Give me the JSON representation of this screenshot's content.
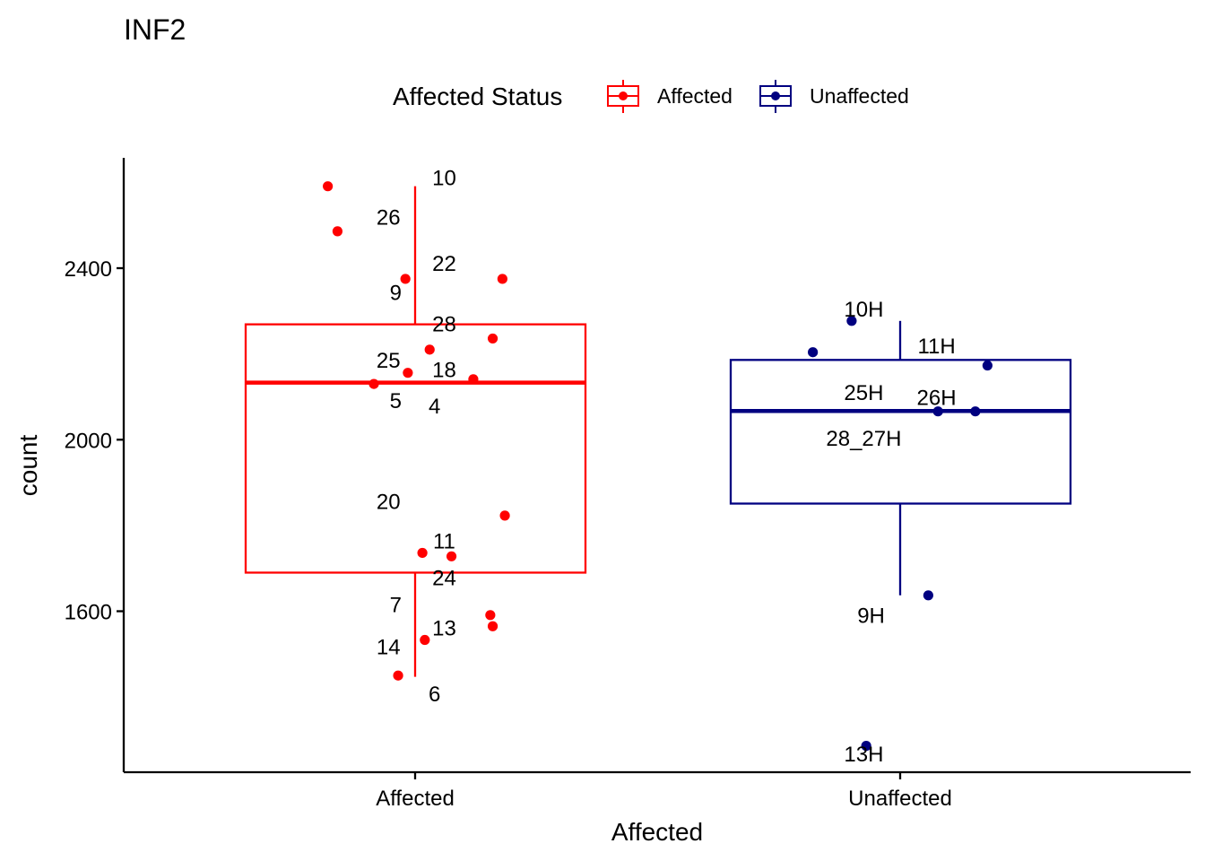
{
  "chart_data": {
    "type": "box",
    "title": "INF2",
    "xlabel": "Affected",
    "ylabel": "count",
    "ylim": [
      1260,
      2640
    ],
    "yticks": [
      1600,
      2000,
      2400
    ],
    "grid": false,
    "categories": [
      "Affected",
      "Unaffected"
    ],
    "legend": {
      "title": "Affected Status",
      "position": "top",
      "entries": [
        {
          "label": "Affected",
          "color": "#ff0000"
        },
        {
          "label": "Unaffected",
          "color": "#000080"
        }
      ]
    },
    "boxes": [
      {
        "category": "Affected",
        "color": "#ff0000",
        "whisker_low": 1447,
        "q1": 1690,
        "median": 2133,
        "q3": 2269,
        "whisker_high": 2591
      },
      {
        "category": "Unaffected",
        "color": "#000080",
        "whisker_low": 1637,
        "q1": 1851,
        "median": 2067,
        "q3": 2186,
        "whisker_high": 2277
      }
    ],
    "series": [
      {
        "name": "Affected",
        "color": "#ff0000",
        "points": [
          {
            "label": "10",
            "jitter": -0.18,
            "y": 2591,
            "lx": 0.06,
            "ly": 2612
          },
          {
            "label": "26",
            "jitter": -0.16,
            "y": 2486,
            "lx": -0.055,
            "ly": 2520
          },
          {
            "label": "22",
            "jitter": 0.18,
            "y": 2375,
            "lx": 0.06,
            "ly": 2413
          },
          {
            "label": "9",
            "jitter": -0.02,
            "y": 2375,
            "lx": -0.04,
            "ly": 2345
          },
          {
            "label": "28",
            "jitter": 0.16,
            "y": 2236,
            "lx": 0.06,
            "ly": 2271
          },
          {
            "label": "25",
            "jitter": 0.03,
            "y": 2210,
            "lx": -0.055,
            "ly": 2187
          },
          {
            "label": "18",
            "jitter": -0.015,
            "y": 2156,
            "lx": 0.06,
            "ly": 2165
          },
          {
            "label": "5",
            "jitter": 0.12,
            "y": 2141,
            "lx": -0.04,
            "ly": 2093
          },
          {
            "label": "4",
            "jitter": -0.085,
            "y": 2130,
            "lx": 0.04,
            "ly": 2080
          },
          {
            "label": "20",
            "jitter": 0.185,
            "y": 1823,
            "lx": -0.055,
            "ly": 1857
          },
          {
            "label": "11",
            "jitter": 0.015,
            "y": 1736,
            "lx": 0.06,
            "ly": 1765
          },
          {
            "label": "24",
            "jitter": 0.075,
            "y": 1728,
            "lx": 0.06,
            "ly": 1680
          },
          {
            "label": "7",
            "jitter": 0.155,
            "y": 1591,
            "lx": -0.04,
            "ly": 1617
          },
          {
            "label": "13",
            "jitter": 0.16,
            "y": 1565,
            "lx": 0.06,
            "ly": 1562
          },
          {
            "label": "14",
            "jitter": 0.02,
            "y": 1533,
            "lx": -0.055,
            "ly": 1518
          },
          {
            "label": "6",
            "jitter": -0.035,
            "y": 1450,
            "lx": 0.04,
            "ly": 1409
          }
        ]
      },
      {
        "name": "Unaffected",
        "color": "#000080",
        "points": [
          {
            "label": "10H",
            "jitter": -0.1,
            "y": 2277,
            "lx": -0.075,
            "ly": 2306
          },
          {
            "label": "11H",
            "jitter": -0.18,
            "y": 2204,
            "lx": 0.075,
            "ly": 2220
          },
          {
            "label": "25H",
            "jitter": 0.18,
            "y": 2173,
            "lx": -0.075,
            "ly": 2111
          },
          {
            "label": "26H",
            "jitter": 0.155,
            "y": 2066,
            "lx": 0.075,
            "ly": 2100
          },
          {
            "label": "28_27H",
            "jitter": 0.078,
            "y": 2066,
            "lx": -0.075,
            "ly": 2005
          },
          {
            "label": "9H",
            "jitter": 0.058,
            "y": 1637,
            "lx": -0.06,
            "ly": 1592
          },
          {
            "label": "13H",
            "jitter": -0.07,
            "y": 1286,
            "lx": -0.075,
            "ly": 1269
          }
        ]
      }
    ]
  }
}
